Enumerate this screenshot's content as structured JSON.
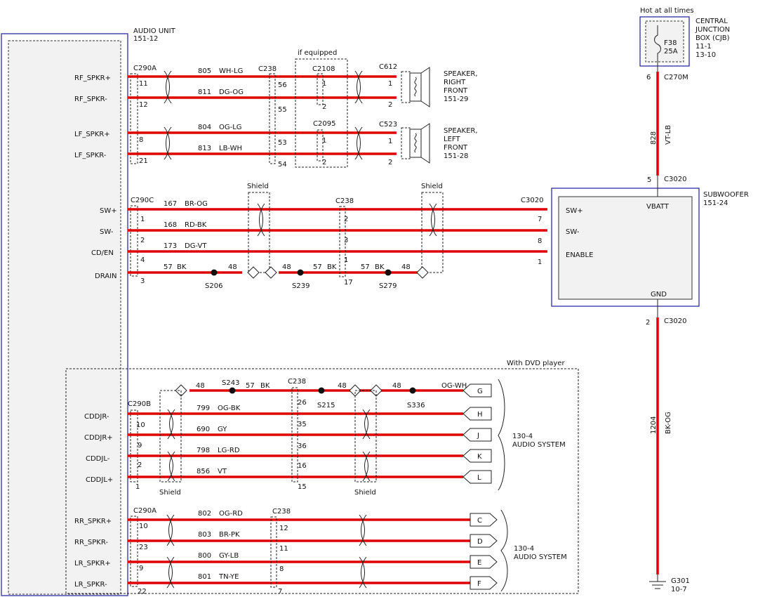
{
  "audio_unit": {
    "title": "AUDIO   UNIT",
    "ref": "151-12"
  },
  "pins": {
    "rf_p": "RF_SPKR+",
    "rf_n": "RF_SPKR-",
    "lf_p": "LF_SPKR+",
    "lf_n": "LF_SPKR-",
    "sw_p": "SW+",
    "sw_n": "SW-",
    "cden": "CD/EN",
    "drain": "DRAIN",
    "cdr_n": "CDDJR-",
    "cdr_p": "CDDJR+",
    "cdl_n": "CDDJL-",
    "cdl_p": "CDDJL+",
    "rr_p": "RR_SPKR+",
    "rr_n": "RR_SPKR-",
    "lr_p": "LR_SPKR+",
    "lr_n": "LR_SPKR-"
  },
  "conn": {
    "c290a": "C290A",
    "c290c": "C290C",
    "c290b": "C290B",
    "c238": "C238",
    "c2108": "C2108",
    "c2095": "C2095",
    "c612": "C612",
    "c523": "C523",
    "c3020": "C3020",
    "c270m": "C270M"
  },
  "labels": {
    "if_equipped": "if equipped",
    "shield": "Shield",
    "with_dvd": "With DVD player",
    "hot": "Hot at all times"
  },
  "cjb": {
    "l1": "CENTRAL",
    "l2": "JUNCTION",
    "l3": "BOX (CJB)",
    "l4": "11-1",
    "l5": "13-10",
    "fuse": "F38",
    "amp": "25A"
  },
  "speaker_rf": {
    "l1": "SPEAKER,",
    "l2": "RIGHT",
    "l3": "FRONT",
    "l4": "151-29"
  },
  "speaker_lf": {
    "l1": "SPEAKER,",
    "l2": "LEFT",
    "l3": "FRONT",
    "l4": "151-28"
  },
  "sub": {
    "l1": "SUBWOOFER",
    "l2": "151-24",
    "sw_p": "SW+",
    "sw_n": "SW-",
    "en": "ENABLE",
    "vbatt": "VBATT",
    "gnd": "GND"
  },
  "audio_sys": {
    "l1": "130-4",
    "l2": "AUDIO SYSTEM"
  },
  "ground": {
    "id": "G301",
    "ref": "10-7"
  },
  "vbatt_wire": {
    "circuit": "828",
    "color": "VT-LB"
  },
  "gnd_wire": {
    "circuit": "1204",
    "color": "BK-OG"
  },
  "splices": {
    "s206": "S206",
    "s239": "S239",
    "s279": "S279",
    "s243": "S243",
    "s215": "S215",
    "s336": "S336"
  },
  "wires": {
    "rf_p": {
      "circ": "805",
      "col": "WH-LG"
    },
    "rf_n": {
      "circ": "811",
      "col": "DG-OG"
    },
    "lf_p": {
      "circ": "804",
      "col": "OG-LG"
    },
    "lf_n": {
      "circ": "813",
      "col": "LB-WH"
    },
    "sw_p": {
      "circ": "167",
      "col": "BR-OG"
    },
    "sw_n": {
      "circ": "168",
      "col": "RD-BK"
    },
    "cden": {
      "circ": "173",
      "col": "DG-VT"
    },
    "cdr_n": {
      "circ": "799",
      "col": "OG-BK"
    },
    "cdr_p": {
      "circ": "690",
      "col": "GY"
    },
    "cdl_n": {
      "circ": "798",
      "col": "LG-RD"
    },
    "cdl_p": {
      "circ": "856",
      "col": "VT"
    },
    "rr_p": {
      "circ": "802",
      "col": "OG-RD"
    },
    "rr_n": {
      "circ": "803",
      "col": "BR-PK"
    },
    "lr_p": {
      "circ": "800",
      "col": "GY-LB"
    },
    "lr_n": {
      "circ": "801",
      "col": "TN-YE"
    }
  },
  "drain_segments": [
    "57",
    "BK",
    "48",
    "48",
    "57",
    "BK",
    "57",
    "BK",
    "48"
  ],
  "dvd_top": [
    "48",
    "57",
    "BK",
    "48",
    "48",
    "OG-WH"
  ],
  "pin_nums": {
    "rf_p_a": "11",
    "rf_n_a": "12",
    "lf_p_a": "8",
    "lf_n_a": "21",
    "rf_p_b": "56",
    "rf_n_b": "55",
    "lf_p_b": "53",
    "lf_n_b": "54",
    "rf_p_c": "1",
    "rf_n_c": "2",
    "lf_p_c": "1",
    "lf_n_c": "2",
    "rf_p_d": "1",
    "rf_n_d": "2",
    "lf_p_d": "1",
    "lf_n_d": "2",
    "sw_p_a": "1",
    "sw_n_a": "2",
    "cden_a": "4",
    "drain_a": "3",
    "sw_p_b": "2",
    "sw_n_b": "3",
    "cden_b": "1",
    "drain_b": "17",
    "sw_p_c": "7",
    "sw_n_c": "8",
    "cden_c": "1",
    "cdr_n_a": "10",
    "cdr_p_a": "9",
    "cdl_n_a": "2",
    "cdl_p_a": "1",
    "cdr_n_b": "26",
    "cdr_p_b": "35",
    "cdl_n_b": "36",
    "cdl_p_b": "16",
    "x_b": "15",
    "rr_p_a": "10",
    "rr_n_a": "23",
    "lr_p_a": "9",
    "lr_n_a": "22",
    "rr_p_b": "12",
    "rr_n_b": "11",
    "lr_p_b": "8",
    "lr_n_b": "7",
    "cjb_out": "6",
    "sub_in": "5",
    "sub_out": "2"
  },
  "jacks": {
    "g": "G",
    "h": "H",
    "j": "J",
    "k": "K",
    "l": "L",
    "c": "C",
    "d": "D",
    "e": "E",
    "f": "F"
  }
}
